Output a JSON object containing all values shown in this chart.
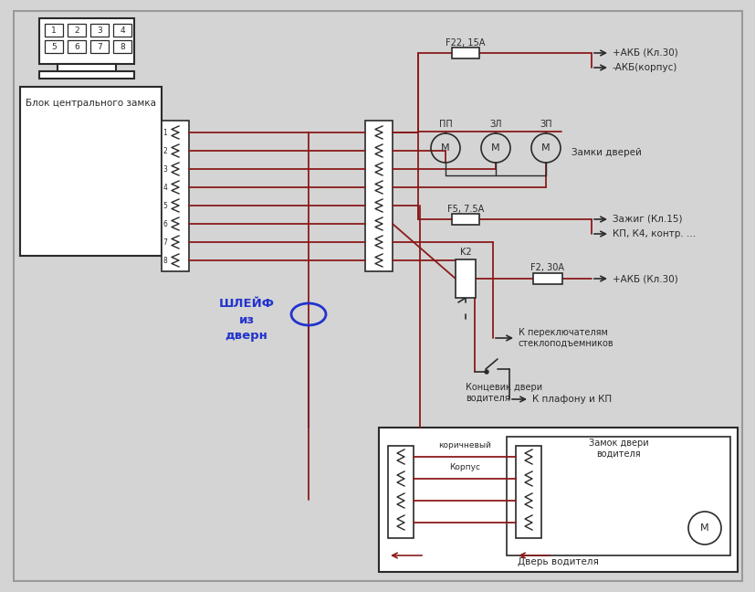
{
  "bg_color": "#d4d4d4",
  "wire_color": "#8b1a1a",
  "line_color": "#2a2a2a",
  "blue_color": "#2233cc",
  "connector_label": "Блок центрального замка",
  "shleif_label": "ШЛЕЙФ\nиз\nдверн",
  "f22_label": "F22, 15A",
  "f5_label": "F5, 7.5A",
  "f2_label": "F2, 30A",
  "k2_label": "K2",
  "akb30_label": "+АКБ (Кл.30)",
  "akb_corp_label": "-АКБ(корпус)",
  "zamki_label": "Замки дверей",
  "zazhig_label": "Зажиг (Кл.15)",
  "kp_label": "КП, К4, контр. ...",
  "akb30_2_label": "+АКБ (Кл.30)",
  "perekl_label": "К переключателям\nстеклоподъемников",
  "konts_label": "Концевик двери\nводителя",
  "plafon_label": "К плафону и КП",
  "zamok_vod_label": "Замок двери\nводителя",
  "dver_vod_label": "Дверь водителя",
  "korich_label": "коричневый",
  "korpus_label": "Корпус",
  "pp_label": "ПП",
  "zl_label": "ЗЛ",
  "zp_label": "ЗП"
}
